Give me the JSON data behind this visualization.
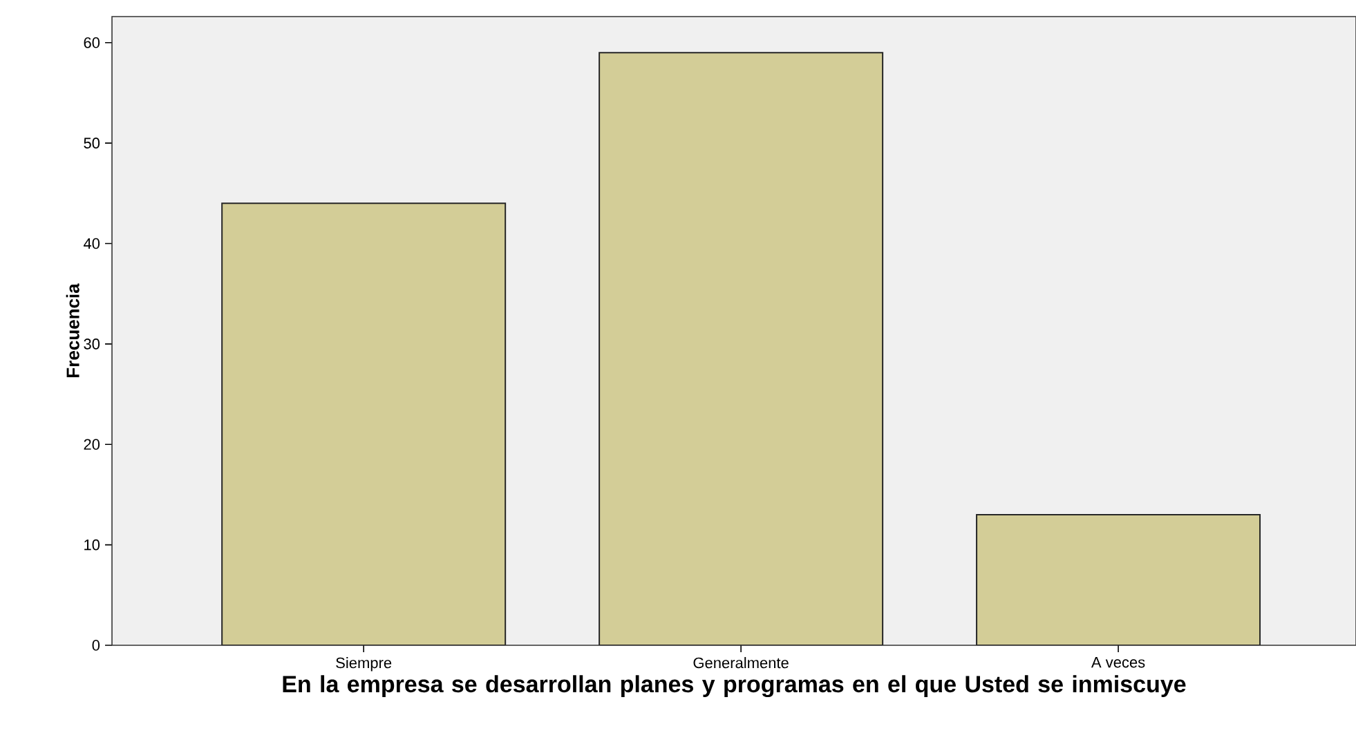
{
  "chart_data": {
    "type": "bar",
    "xlabel": "En la empresa se desarrollan planes y programas en el que  Usted se inmiscuye",
    "ylabel": "Frecuencia",
    "categories": [
      "Siempre",
      "Generalmente",
      "A veces"
    ],
    "values": [
      44,
      59,
      13
    ],
    "color": "#d3cd97",
    "ylim": [
      0,
      62.6
    ],
    "yticks": [
      0,
      10,
      20,
      30,
      40,
      50,
      60
    ],
    "grid": false
  }
}
